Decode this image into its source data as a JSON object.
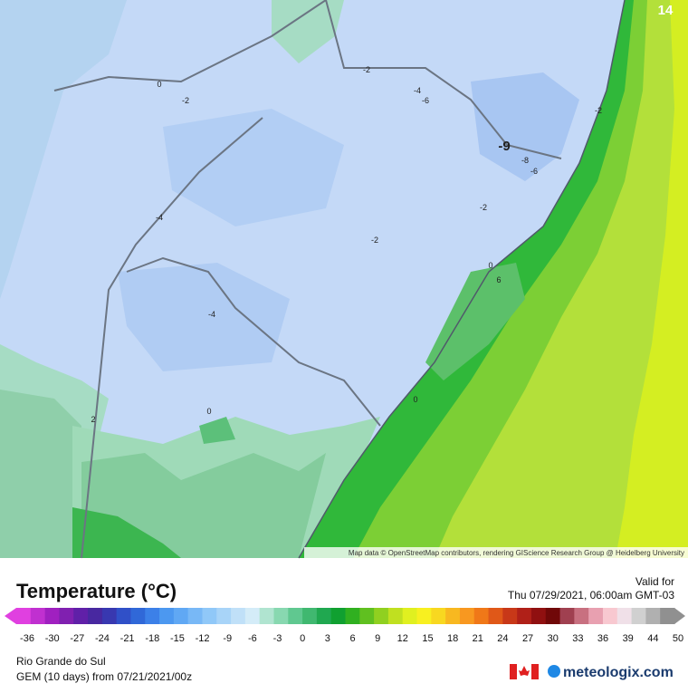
{
  "map": {
    "attribution": "Map data © OpenStreetMap contributors, rendering GIScience Research Group @ Heidelberg University",
    "contour_labels": [
      "0",
      "-2",
      "-2",
      "-4",
      "-6",
      "-2",
      "-9",
      "-8",
      "-6",
      "-2",
      "-4",
      "-2",
      "0",
      "6",
      "-4",
      "0",
      "0",
      "2",
      "14"
    ]
  },
  "legend": {
    "title": "Temperature (°C)",
    "ticks": [
      -36,
      -30,
      -27,
      -24,
      -21,
      -18,
      -15,
      -12,
      -9,
      -6,
      -3,
      0,
      3,
      6,
      9,
      12,
      15,
      18,
      21,
      24,
      27,
      30,
      33,
      36,
      39,
      44,
      50
    ]
  },
  "valid": {
    "label": "Valid for",
    "time": "Thu 07/29/2021, 06:00am GMT-03"
  },
  "footer": {
    "region": "Rio Grande do Sul",
    "model": "GEM (10 days) from 07/21/2021/00z",
    "brand": "meteologix.com"
  }
}
